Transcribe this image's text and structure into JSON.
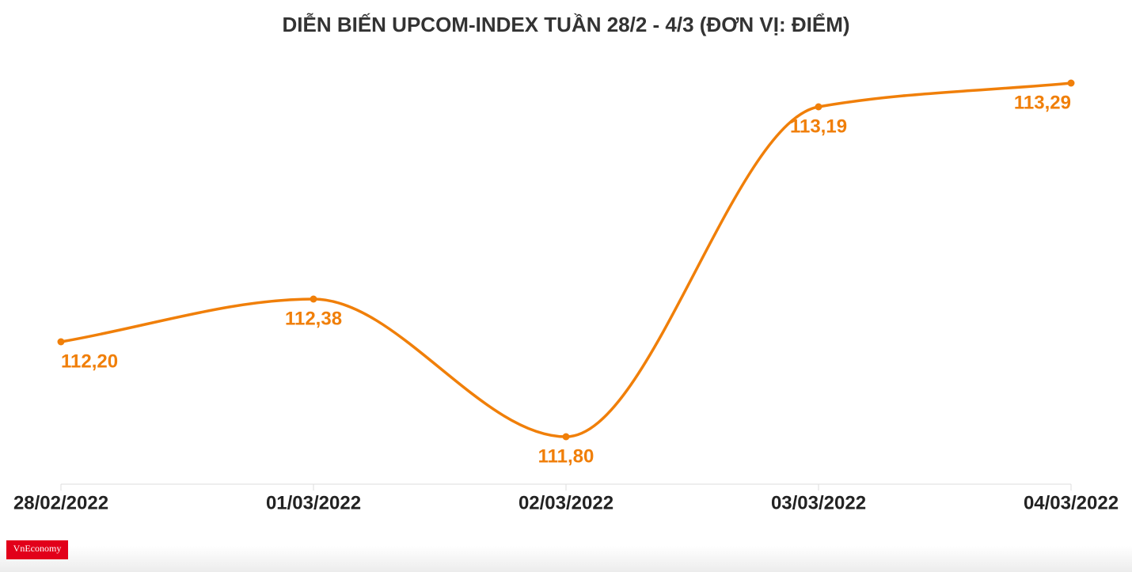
{
  "chart_data": {
    "type": "line",
    "title": "DIỄN BIẾN UPCOM-INDEX TUẦN 28/2 - 4/3 (ĐƠN VỊ: ĐIỂM)",
    "categories": [
      "28/02/2022",
      "01/03/2022",
      "02/03/2022",
      "03/03/2022",
      "04/03/2022"
    ],
    "series": [
      {
        "name": "UPCOM-Index",
        "color": "#f07f09",
        "values": [
          112.2,
          112.38,
          111.8,
          113.19,
          113.29
        ],
        "value_labels": [
          "112,20",
          "112,38",
          "111,80",
          "113,19",
          "113,29"
        ]
      }
    ],
    "ylim": [
      111.6,
      113.44
    ],
    "grid": false
  },
  "logo": "VnEconomy"
}
